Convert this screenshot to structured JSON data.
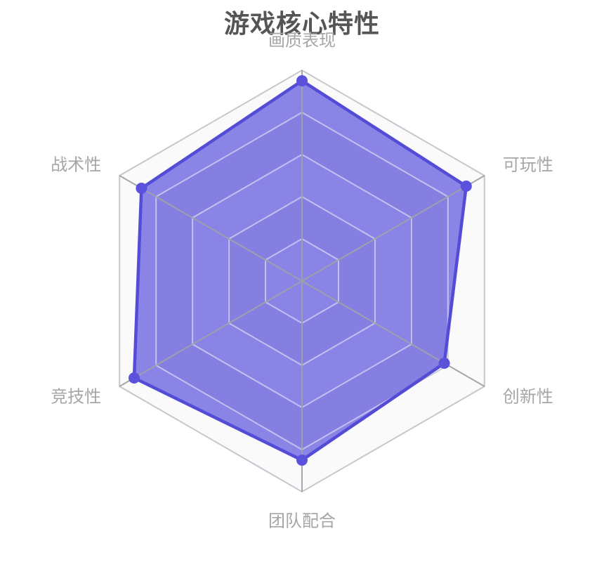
{
  "chart_data": {
    "type": "radar",
    "title": "游戏核心特性",
    "indicators": [
      {
        "name": "画质表现",
        "max": 100
      },
      {
        "name": "可玩性",
        "max": 100
      },
      {
        "name": "创新性",
        "max": 100
      },
      {
        "name": "团队配合",
        "max": 100
      },
      {
        "name": "竞技性",
        "max": 100
      },
      {
        "name": "战术性",
        "max": 100
      }
    ],
    "series": [
      {
        "name": "游戏核心特性",
        "values": [
          95,
          90,
          78,
          85,
          92,
          88
        ]
      }
    ],
    "max": 100,
    "rings": 5,
    "grid": "hexagonal",
    "legend_position": "none",
    "style": {
      "center": [
        430,
        400
      ],
      "radius": 300,
      "band_light": "#fafafb",
      "band_dark": "#e9ebf1",
      "ring_line": "#c6c8cf",
      "ring_line_over_fill": "rgba(255,255,255,0.55)",
      "spoke_line": "rgba(160,161,170,0.95)",
      "fill": "rgba(80,72,218,0.66)",
      "stroke": "#544cd6",
      "stroke_width": 4.5,
      "dot_color": "#5a52dc",
      "dot_radius": 8,
      "label_color": "#a6a6a6",
      "label_size": 24,
      "title_color": "#555555",
      "title_size": 36
    }
  }
}
